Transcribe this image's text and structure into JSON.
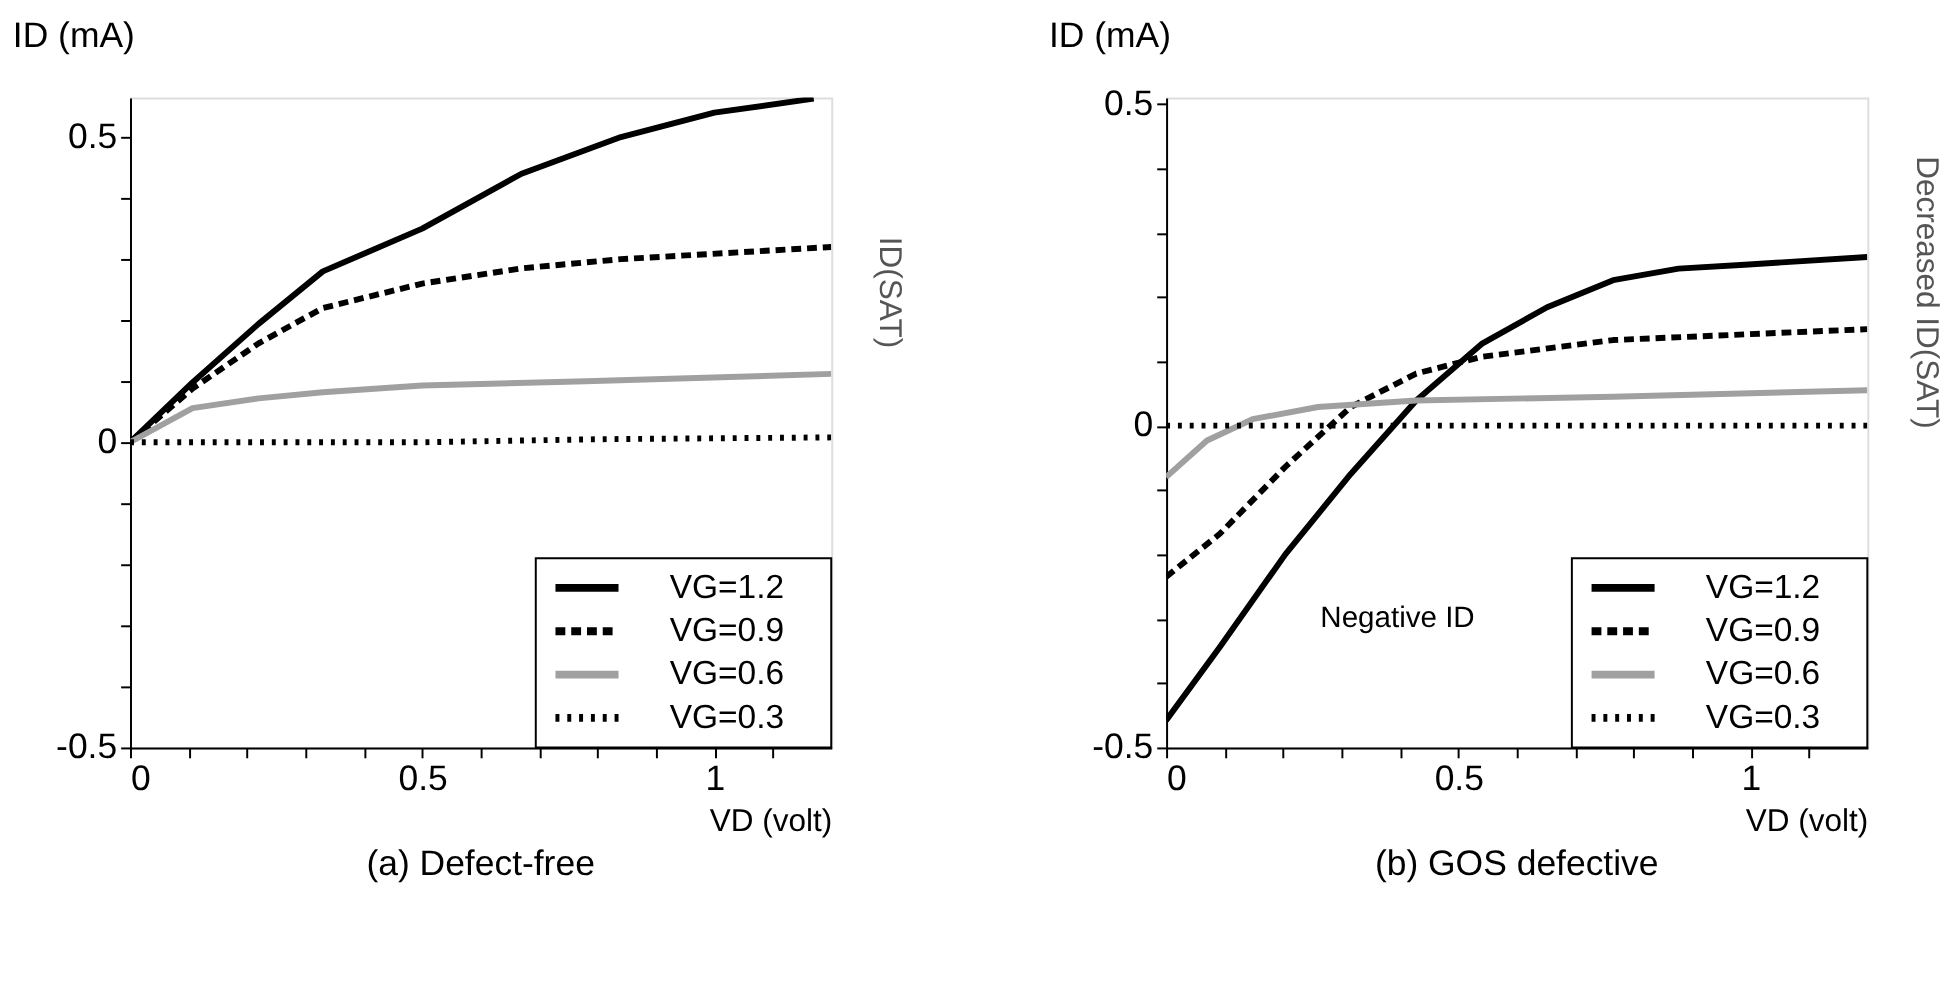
{
  "chart_data": [
    {
      "type": "line",
      "title": "(a) Defect-free",
      "xlabel": "VD (volt)",
      "ylabel": "ID (mA)",
      "xlim": [
        0,
        1.2
      ],
      "ylim": [
        -0.5,
        0.565
      ],
      "xticks": [
        0,
        {
          "value": 0.1,
          "label": null
        },
        {
          "value": 0.2,
          "label": null
        },
        {
          "value": 0.3,
          "label": null
        },
        {
          "value": 0.4,
          "label": null
        },
        0.5,
        {
          "value": 0.6,
          "label": null
        },
        {
          "value": 0.7,
          "label": null
        },
        {
          "value": 0.8,
          "label": null
        },
        {
          "value": 0.9,
          "label": null
        },
        1,
        {
          "value": 1.1,
          "label": null
        }
      ],
      "yticks": [
        -0.5,
        {
          "value": -0.4,
          "label": null
        },
        {
          "value": -0.3,
          "label": null
        },
        {
          "value": -0.2,
          "label": null
        },
        {
          "value": -0.1,
          "label": null
        },
        0,
        {
          "value": 0.1,
          "label": null
        },
        {
          "value": 0.2,
          "label": null
        },
        {
          "value": 0.3,
          "label": null
        },
        {
          "value": 0.4,
          "label": null
        },
        0.5
      ],
      "grid": false,
      "legend": "bottom right",
      "marker": "none",
      "annotations": [
        "ID(SAT)"
      ],
      "series": [
        {
          "name": "VG=1.2",
          "color": "#000000",
          "line_style": "solid",
          "x": [
            0,
            0.107,
            0.22,
            0.33,
            0.5,
            0.67,
            0.84,
            1.0,
            1.17
          ],
          "values": [
            0,
            0.098,
            0.194,
            0.28,
            0.35,
            0.44,
            0.5,
            0.54,
            0.563
          ]
        },
        {
          "name": "VG=0.9",
          "color": "#000000",
          "line_style": "dashed",
          "x": [
            0,
            0.107,
            0.22,
            0.33,
            0.5,
            0.67,
            0.84,
            1.2
          ],
          "values": [
            0,
            0.088,
            0.162,
            0.22,
            0.26,
            0.285,
            0.3,
            0.32
          ]
        },
        {
          "name": "VG=0.6",
          "color": "#a0a0a0",
          "line_style": "solid",
          "x": [
            0,
            0.107,
            0.22,
            0.33,
            0.5,
            0.78,
            1.2
          ],
          "values": [
            0,
            0.056,
            0.072,
            0.082,
            0.093,
            0.1,
            0.112
          ]
        },
        {
          "name": "VG=0.3",
          "color": "#000000",
          "line_style": "dotted",
          "x": [
            0,
            0.5,
            0.8,
            1.2
          ],
          "values": [
            0,
            0,
            0.005,
            0.008
          ]
        }
      ]
    },
    {
      "type": "line",
      "title": "(b) GOS defective",
      "xlabel": "VD (volt)",
      "ylabel": "ID (mA)",
      "xlim": [
        0,
        1.2
      ],
      "ylim": [
        -0.5,
        0.51
      ],
      "xticks": [
        0,
        {
          "value": 0.1,
          "label": null
        },
        {
          "value": 0.2,
          "label": null
        },
        {
          "value": 0.3,
          "label": null
        },
        {
          "value": 0.4,
          "label": null
        },
        0.5,
        {
          "value": 0.6,
          "label": null
        },
        {
          "value": 0.7,
          "label": null
        },
        {
          "value": 0.8,
          "label": null
        },
        {
          "value": 0.9,
          "label": null
        },
        1,
        {
          "value": 1.1,
          "label": null
        }
      ],
      "yticks": [
        -0.5,
        {
          "value": -0.4,
          "label": null
        },
        {
          "value": -0.3,
          "label": null
        },
        {
          "value": -0.2,
          "label": null
        },
        {
          "value": -0.1,
          "label": null
        },
        0,
        {
          "value": 0.1,
          "label": null
        },
        {
          "value": 0.2,
          "label": null
        },
        {
          "value": 0.3,
          "label": null
        },
        {
          "value": 0.4,
          "label": null
        },
        0.5
      ],
      "grid": false,
      "legend": "bottom right",
      "marker": "none",
      "annotations": [
        "Negative ID",
        "Decreased ID(SAT)"
      ],
      "series": [
        {
          "name": "VG=1.2",
          "color": "#000000",
          "line_style": "solid",
          "x": [
            0,
            0.092,
            0.204,
            0.316,
            0.428,
            0.54,
            0.652,
            0.765,
            0.877,
            0.99,
            1.2
          ],
          "values": [
            -0.458,
            -0.344,
            -0.2,
            -0.075,
            0.039,
            0.127,
            0.184,
            0.226,
            0.244,
            0.25,
            0.262
          ]
        },
        {
          "name": "VG=0.9",
          "color": "#000000",
          "line_style": "dashed",
          "x": [
            0,
            0.092,
            0.204,
            0.316,
            0.428,
            0.54,
            0.765,
            1.2
          ],
          "values": [
            -0.235,
            -0.168,
            -0.064,
            0.029,
            0.081,
            0.107,
            0.133,
            0.15
          ]
        },
        {
          "name": "VG=0.6",
          "color": "#a0a0a0",
          "line_style": "solid",
          "x": [
            0,
            0.07,
            0.148,
            0.26,
            0.428,
            0.765,
            1.2
          ],
          "values": [
            -0.08,
            -0.023,
            0.01,
            0.029,
            0.039,
            0.045,
            0.055
          ]
        },
        {
          "name": "VG=0.3",
          "color": "#000000",
          "line_style": "dotted",
          "x": [
            0,
            0.5,
            1.2
          ],
          "values": [
            0,
            0,
            0
          ]
        }
      ]
    }
  ]
}
